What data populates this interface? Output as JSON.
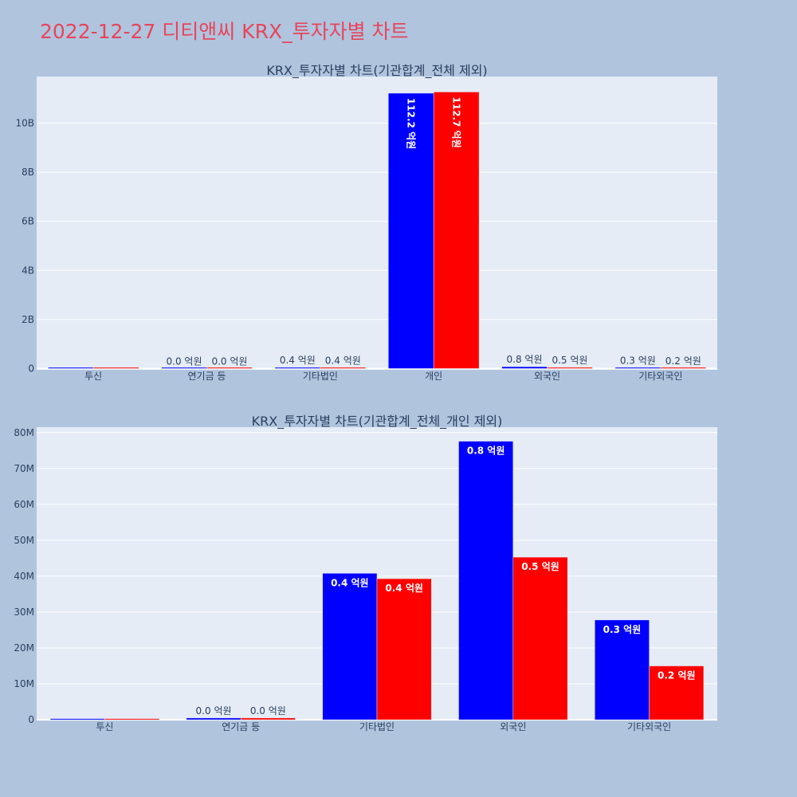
{
  "page": {
    "title": "2022-12-27 디티앤씨 KRX_투자자별 차트"
  },
  "colors": {
    "page_bg": "#b0c4de",
    "plot_bg": "#e5ecf6",
    "grid": "#ffffff",
    "buy": "#0000ff",
    "sell": "#ff0000",
    "title": "#e8455a",
    "text": "#2a3f5f"
  },
  "chart_data": [
    {
      "type": "bar",
      "title": "KRX_투자자별 차트(기관합계_전체 제외)",
      "categories": [
        "투신",
        "연기금 등",
        "기타법인",
        "개인",
        "외국인",
        "기타외국인"
      ],
      "series": [
        {
          "color": "#0000ff",
          "values": [
            0,
            0,
            40000000,
            11220000000,
            77000000,
            27000000
          ],
          "labels": [
            "",
            "0.0 억원",
            "0.4 억원",
            "112.2 억원",
            "0.8 억원",
            "0.3 억원"
          ]
        },
        {
          "color": "#ff0000",
          "values": [
            0,
            0,
            39000000,
            11270000000,
            45000000,
            15000000
          ],
          "labels": [
            "",
            "0.0 억원",
            "0.4 억원",
            "112.7 억원",
            "0.5 억원",
            "0.2 억원"
          ]
        }
      ],
      "ylim": [
        -50000000,
        11900000000
      ],
      "yticks": [
        0,
        2000000000,
        4000000000,
        6000000000,
        8000000000,
        10000000000
      ],
      "ytick_labels": [
        "0",
        "2B",
        "4B",
        "6B",
        "8B",
        "10B"
      ],
      "grid": true,
      "label_rotation": 90
    },
    {
      "type": "bar",
      "title": "KRX_투자자별 차트(기관합계_전체_개인 제외)",
      "categories": [
        "투신",
        "연기금 등",
        "기타법인",
        "외국인",
        "기타외국인"
      ],
      "series": [
        {
          "color": "#0000ff",
          "values": [
            0,
            500000,
            40800000,
            77600000,
            27800000
          ],
          "labels": [
            "",
            "0.0 억원",
            "0.4 억원",
            "0.8 억원",
            "0.3 억원"
          ]
        },
        {
          "color": "#ff0000",
          "values": [
            0,
            500000,
            39300000,
            45300000,
            15000000
          ],
          "labels": [
            "",
            "0.0 억원",
            "0.4 억원",
            "0.5 억원",
            "0.2 억원"
          ]
        }
      ],
      "ylim": [
        -200000,
        81500000
      ],
      "yticks": [
        0,
        10000000,
        20000000,
        30000000,
        40000000,
        50000000,
        60000000,
        70000000,
        80000000
      ],
      "ytick_labels": [
        "0",
        "10M",
        "20M",
        "30M",
        "40M",
        "50M",
        "60M",
        "70M",
        "80M"
      ],
      "grid": true,
      "label_rotation": 0
    }
  ]
}
